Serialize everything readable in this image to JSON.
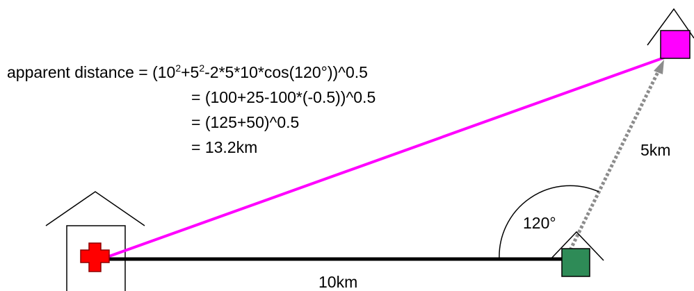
{
  "formula": {
    "line1": {
      "prefix": "apparent distance = (10",
      "sup1": "2",
      "mid": "+5",
      "sup2": "2",
      "suffix": "-2*5*10*cos(120°))^0.5"
    },
    "line2": "= (100+25-100*(-0.5))^0.5",
    "line3": "= (125+50)^0.5",
    "line4": "= 13.2km"
  },
  "labels": {
    "dist_10km": "10km",
    "dist_5km": "5km",
    "angle": "120°"
  },
  "icons": {
    "hospital": "hospital-house-icon",
    "red_cross": "red-cross-icon",
    "home": "green-house-icon",
    "target": "magenta-house-icon"
  },
  "colors": {
    "apparent_line": "#ff00ff",
    "base_line": "#000000",
    "dotted_line": "#8c8c8c",
    "red_cross": "#ff0000",
    "green_house": "#2e8b57",
    "magenta_house": "#ff00ff"
  }
}
